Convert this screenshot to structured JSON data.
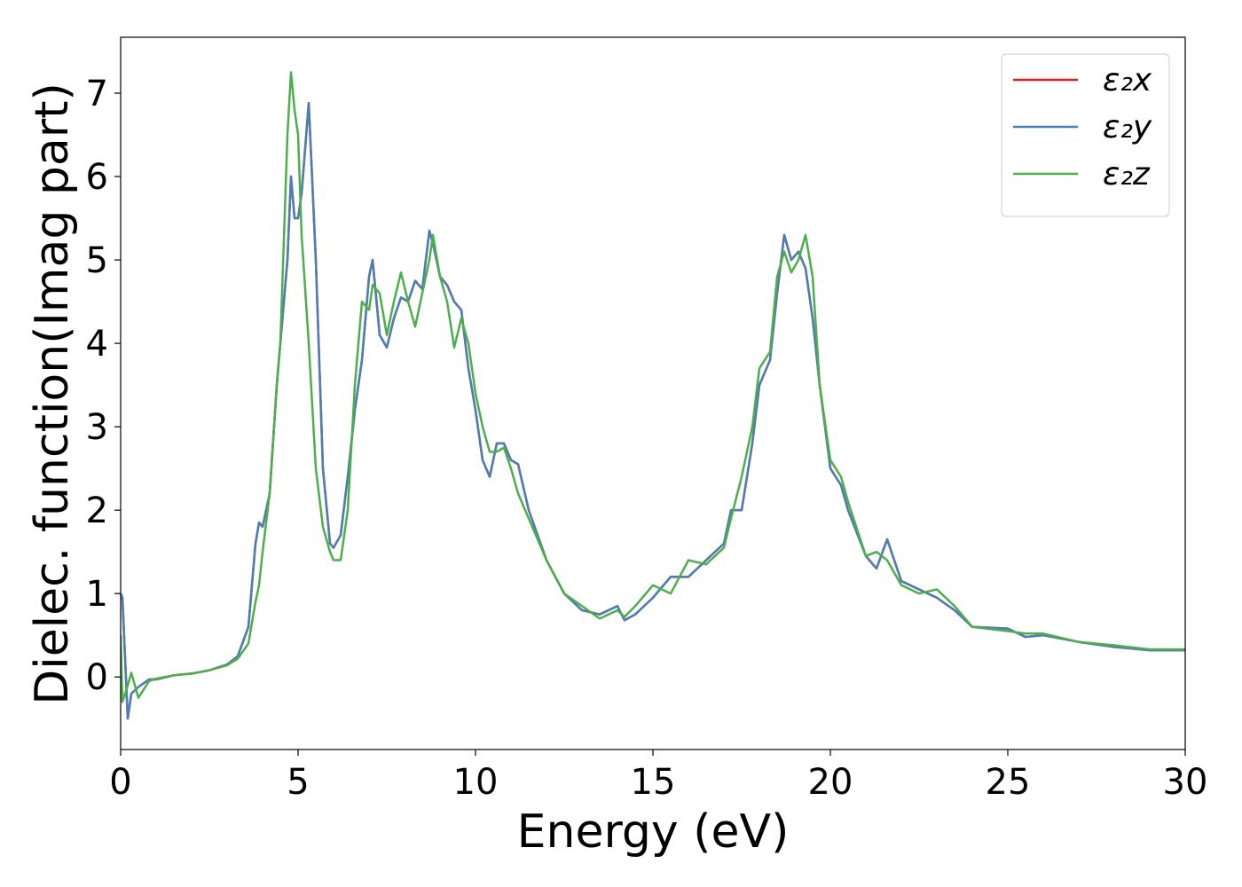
{
  "chart_data": {
    "type": "line",
    "x_label": "Energy (eV)",
    "y_label": "Dielec. function(Imag part)",
    "xlim": [
      0,
      30
    ],
    "ylim": [
      -0.87,
      7.67
    ],
    "xticks": [
      0,
      5,
      10,
      15,
      20,
      25,
      30
    ],
    "yticks": [
      0,
      1,
      2,
      3,
      4,
      5,
      6,
      7
    ],
    "legend": "upper right",
    "x": [
      0,
      0.05,
      0.2,
      0.3,
      0.5,
      0.8,
      1,
      1.5,
      2,
      2.5,
      3,
      3.3,
      3.6,
      3.8,
      3.9,
      4.0,
      4.2,
      4.4,
      4.5,
      4.7,
      4.8,
      4.9,
      5.0,
      5.1,
      5.3,
      5.5,
      5.7,
      5.9,
      6.0,
      6.2,
      6.4,
      6.6,
      6.8,
      7.0,
      7.1,
      7.3,
      7.5,
      7.7,
      7.9,
      8.1,
      8.3,
      8.5,
      8.7,
      8.8,
      9.0,
      9.2,
      9.4,
      9.6,
      9.8,
      10.0,
      10.2,
      10.4,
      10.6,
      10.8,
      11.0,
      11.2,
      11.5,
      12.0,
      12.5,
      13.0,
      13.5,
      14.0,
      14.2,
      14.5,
      15.0,
      15.5,
      16.0,
      16.5,
      17.0,
      17.2,
      17.5,
      17.8,
      18.0,
      18.3,
      18.5,
      18.7,
      18.9,
      19.1,
      19.3,
      19.5,
      19.7,
      20.0,
      20.3,
      20.5,
      21.0,
      21.3,
      21.6,
      22.0,
      22.5,
      23.0,
      23.5,
      24.0,
      25.0,
      25.5,
      26,
      27,
      28,
      29,
      30
    ],
    "series": [
      {
        "name": "ε₂x",
        "color": "#e41a1c",
        "values": [
          1.0,
          0.95,
          -0.5,
          -0.2,
          -0.12,
          -0.03,
          -0.03,
          0.02,
          0.04,
          0.08,
          0.15,
          0.25,
          0.6,
          1.6,
          1.85,
          1.8,
          2.2,
          3.5,
          4.0,
          5.0,
          6.0,
          5.5,
          5.5,
          5.8,
          6.88,
          5.0,
          2.5,
          1.6,
          1.55,
          1.7,
          2.4,
          3.2,
          3.8,
          4.8,
          5.0,
          4.1,
          3.95,
          4.3,
          4.55,
          4.5,
          4.75,
          4.65,
          5.35,
          5.2,
          4.8,
          4.7,
          4.5,
          4.4,
          3.7,
          3.2,
          2.6,
          2.4,
          2.8,
          2.8,
          2.6,
          2.55,
          2.0,
          1.4,
          1.0,
          0.8,
          0.75,
          0.85,
          0.68,
          0.75,
          0.95,
          1.2,
          1.2,
          1.4,
          1.6,
          2.0,
          2.0,
          2.8,
          3.5,
          3.8,
          4.6,
          5.3,
          5.0,
          5.1,
          4.9,
          4.3,
          3.5,
          2.5,
          2.3,
          2.0,
          1.45,
          1.3,
          1.65,
          1.15,
          1.05,
          0.95,
          0.8,
          0.6,
          0.58,
          0.48,
          0.5,
          0.42,
          0.36,
          0.32,
          0.32
        ]
      },
      {
        "name": "ε₂y",
        "color": "#4a7fb5",
        "values": [
          1.0,
          0.95,
          -0.5,
          -0.2,
          -0.12,
          -0.03,
          -0.03,
          0.02,
          0.04,
          0.08,
          0.15,
          0.25,
          0.6,
          1.6,
          1.85,
          1.8,
          2.2,
          3.5,
          4.0,
          5.0,
          6.0,
          5.5,
          5.5,
          5.8,
          6.88,
          5.0,
          2.5,
          1.6,
          1.55,
          1.7,
          2.4,
          3.2,
          3.8,
          4.8,
          5.0,
          4.1,
          3.95,
          4.3,
          4.55,
          4.5,
          4.75,
          4.65,
          5.35,
          5.2,
          4.8,
          4.7,
          4.5,
          4.4,
          3.7,
          3.2,
          2.6,
          2.4,
          2.8,
          2.8,
          2.6,
          2.55,
          2.0,
          1.4,
          1.0,
          0.8,
          0.75,
          0.85,
          0.68,
          0.75,
          0.95,
          1.2,
          1.2,
          1.4,
          1.6,
          2.0,
          2.0,
          2.8,
          3.5,
          3.8,
          4.6,
          5.3,
          5.0,
          5.1,
          4.9,
          4.3,
          3.5,
          2.5,
          2.3,
          2.0,
          1.45,
          1.3,
          1.65,
          1.15,
          1.05,
          0.95,
          0.8,
          0.6,
          0.58,
          0.48,
          0.5,
          0.42,
          0.36,
          0.32,
          0.32
        ]
      },
      {
        "name": "ε₂z",
        "color": "#4daf4a",
        "values": [
          0.5,
          -0.3,
          -0.1,
          0.05,
          -0.25,
          -0.05,
          -0.02,
          0.02,
          0.04,
          0.08,
          0.14,
          0.22,
          0.4,
          0.9,
          1.1,
          1.5,
          2.2,
          3.5,
          4.0,
          6.5,
          7.25,
          6.8,
          6.5,
          5.3,
          4.0,
          2.5,
          1.8,
          1.5,
          1.4,
          1.4,
          2.0,
          3.5,
          4.5,
          4.4,
          4.7,
          4.6,
          4.1,
          4.5,
          4.85,
          4.5,
          4.2,
          4.6,
          5.0,
          5.3,
          4.8,
          4.5,
          3.95,
          4.3,
          4.0,
          3.4,
          3.0,
          2.7,
          2.7,
          2.75,
          2.5,
          2.2,
          1.9,
          1.4,
          1.0,
          0.85,
          0.7,
          0.8,
          0.72,
          0.85,
          1.1,
          1.0,
          1.4,
          1.35,
          1.55,
          1.9,
          2.4,
          3.0,
          3.7,
          3.9,
          4.8,
          5.1,
          4.85,
          5.0,
          5.3,
          4.8,
          3.5,
          2.6,
          2.4,
          2.1,
          1.45,
          1.5,
          1.4,
          1.1,
          1.0,
          1.05,
          0.85,
          0.6,
          0.55,
          0.52,
          0.52,
          0.42,
          0.38,
          0.33,
          0.33
        ]
      }
    ]
  }
}
